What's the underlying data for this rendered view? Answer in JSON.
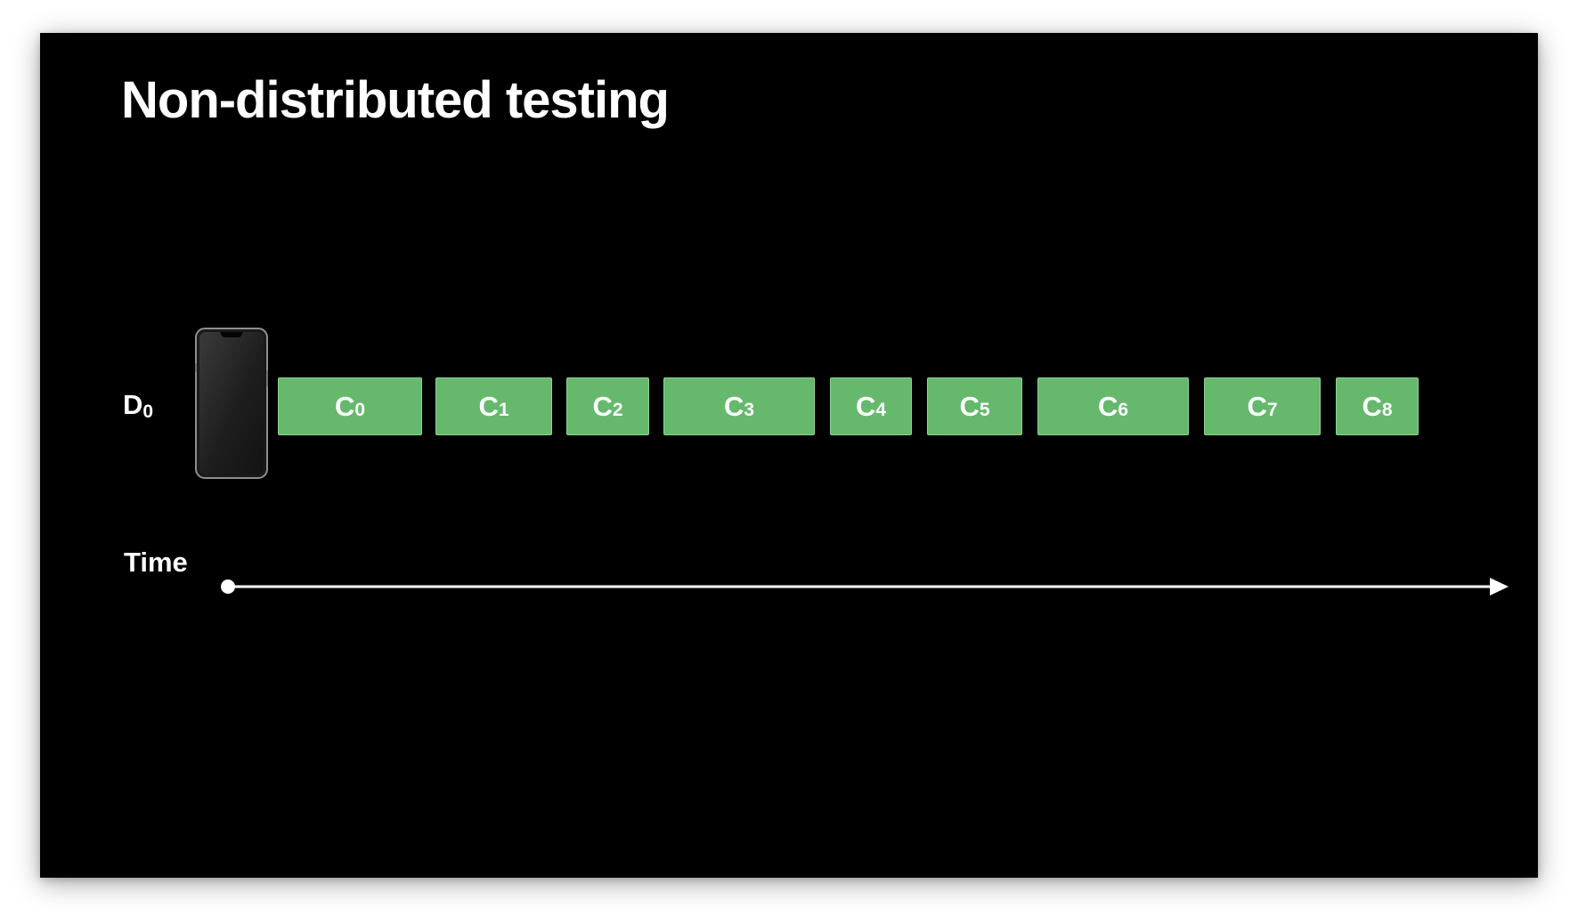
{
  "title": "Non-distributed testing",
  "device": {
    "label_main": "D",
    "label_sub": "0"
  },
  "timeline": {
    "label": "Time"
  },
  "colors": {
    "background": "#000000",
    "chunk_fill": "#66b96c",
    "chunk_border": "#8fd195",
    "text": "#ffffff"
  },
  "icons": {
    "device": "iphone-icon",
    "timeline": "arrow-right-icon"
  },
  "chunks": [
    {
      "main": "C",
      "sub": "0"
    },
    {
      "main": "C",
      "sub": "1"
    },
    {
      "main": "C",
      "sub": "2"
    },
    {
      "main": "C",
      "sub": "3"
    },
    {
      "main": "C",
      "sub": "4"
    },
    {
      "main": "C",
      "sub": "5"
    },
    {
      "main": "C",
      "sub": "6"
    },
    {
      "main": "C",
      "sub": "7"
    },
    {
      "main": "C",
      "sub": "8"
    }
  ]
}
